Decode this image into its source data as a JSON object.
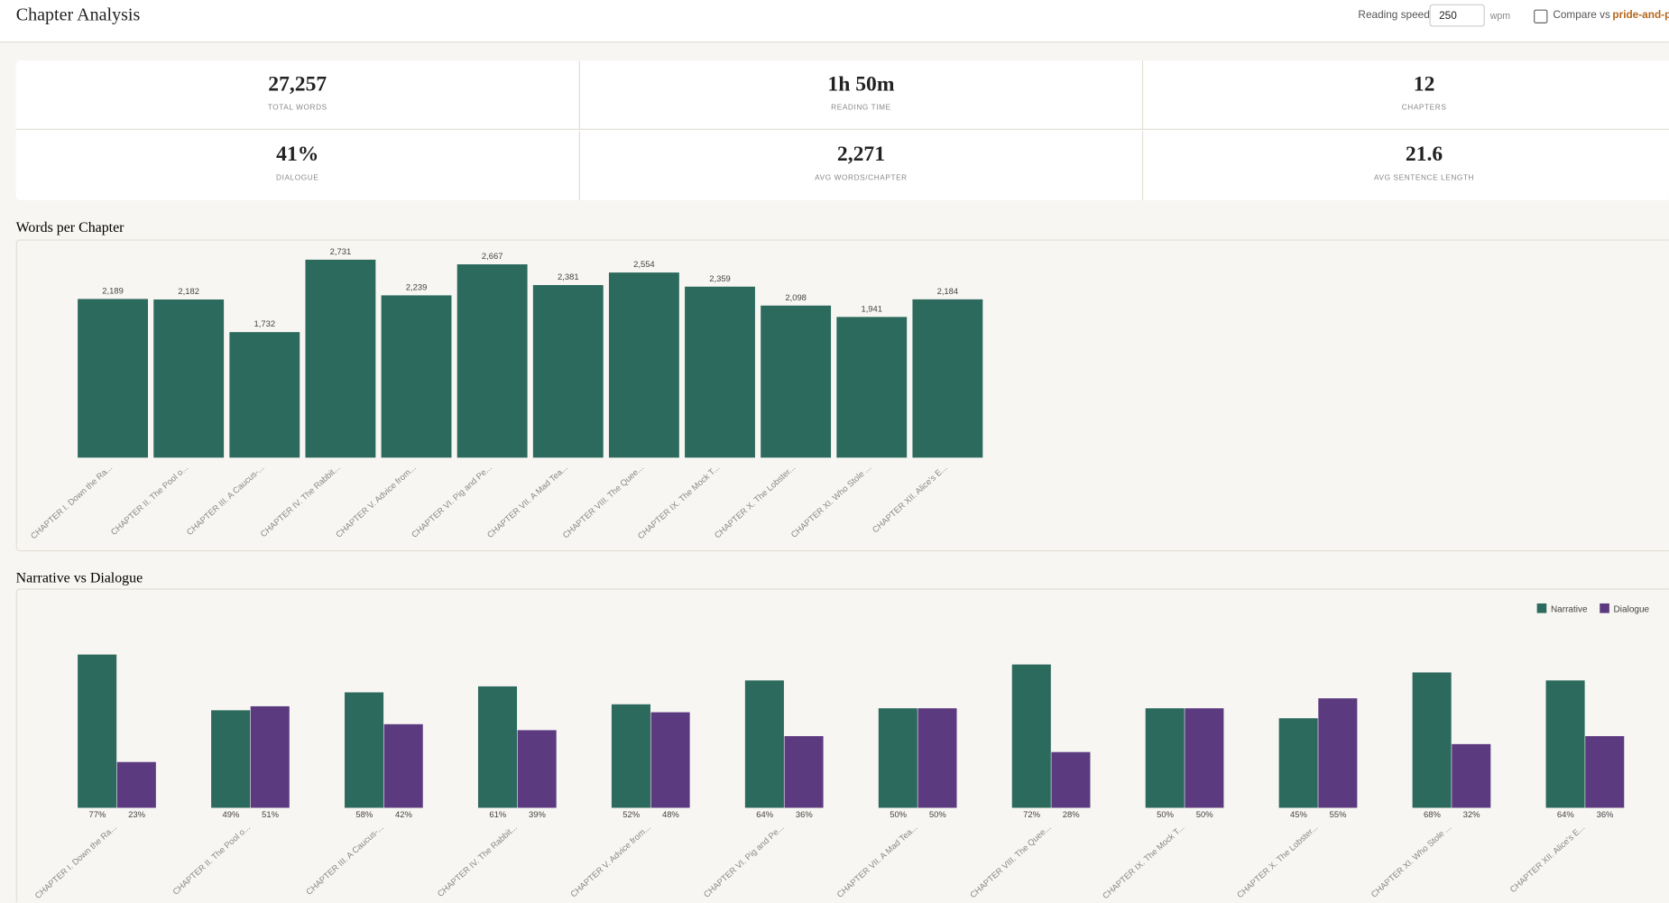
{
  "header": {
    "title": "Chapter Analysis",
    "reading_speed_label": "Reading speed:",
    "reading_speed_value": "250",
    "reading_speed_unit": "wpm",
    "compare_label": "Compare vs",
    "compare_target": "pride-and-pr"
  },
  "stats": [
    {
      "value": "27,257",
      "label": "TOTAL WORDS"
    },
    {
      "value": "1h 50m",
      "label": "READING TIME"
    },
    {
      "value": "12",
      "label": "CHAPTERS"
    },
    {
      "value": "41%",
      "label": "DIALOGUE"
    },
    {
      "value": "2,271",
      "label": "AVG WORDS/CHAPTER"
    },
    {
      "value": "21.6",
      "label": "AVG SENTENCE LENGTH"
    }
  ],
  "chart_data": [
    {
      "type": "bar",
      "title": "Words per Chapter",
      "color": "#2d6a5e",
      "categories": [
        "CHAPTER I. Down the Ra...",
        "CHAPTER II. The Pool o...",
        "CHAPTER III. A Caucus-...",
        "CHAPTER IV. The Rabbit...",
        "CHAPTER V. Advice from...",
        "CHAPTER VI. Pig and Pe...",
        "CHAPTER VII. A Mad Tea...",
        "CHAPTER VIII. The Quee...",
        "CHAPTER IX. The Mock T...",
        "CHAPTER X. The Lobster...",
        "CHAPTER XI. Who Stole ...",
        "CHAPTER XII. Alice's E..."
      ],
      "values": [
        2189,
        2182,
        1732,
        2731,
        2239,
        2667,
        2381,
        2554,
        2359,
        2098,
        1941,
        2184
      ],
      "value_labels": [
        "2,189",
        "2,182",
        "1,732",
        "2,731",
        "2,239",
        "2,667",
        "2,381",
        "2,554",
        "2,359",
        "2,098",
        "1,941",
        "2,184"
      ]
    },
    {
      "type": "grouped-bar",
      "title": "Narrative vs Dialogue",
      "legend": "top-right",
      "categories": [
        "CHAPTER I. Down the Ra...",
        "CHAPTER II. The Pool o...",
        "CHAPTER III. A Caucus-...",
        "CHAPTER IV. The Rabbit...",
        "CHAPTER V. Advice from...",
        "CHAPTER VI. Pig and Pe...",
        "CHAPTER VII. A Mad Tea...",
        "CHAPTER VIII. The Quee...",
        "CHAPTER IX. The Mock T...",
        "CHAPTER X. The Lobster...",
        "CHAPTER XI. Who Stole ...",
        "CHAPTER XII. Alice's E..."
      ],
      "series": [
        {
          "name": "Narrative",
          "color": "#2d6a5e",
          "values": [
            77,
            49,
            58,
            61,
            52,
            64,
            50,
            72,
            50,
            45,
            68,
            64
          ],
          "value_labels": [
            "77%",
            "49%",
            "58%",
            "61%",
            "52%",
            "64%",
            "50%",
            "72%",
            "50%",
            "45%",
            "68%",
            "64%"
          ]
        },
        {
          "name": "Dialogue",
          "color": "#5b3a80",
          "values": [
            23,
            51,
            42,
            39,
            48,
            36,
            50,
            28,
            50,
            55,
            32,
            36
          ],
          "value_labels": [
            "23%",
            "51%",
            "42%",
            "39%",
            "48%",
            "36%",
            "50%",
            "28%",
            "50%",
            "55%",
            "32%",
            "36%"
          ]
        }
      ]
    }
  ]
}
